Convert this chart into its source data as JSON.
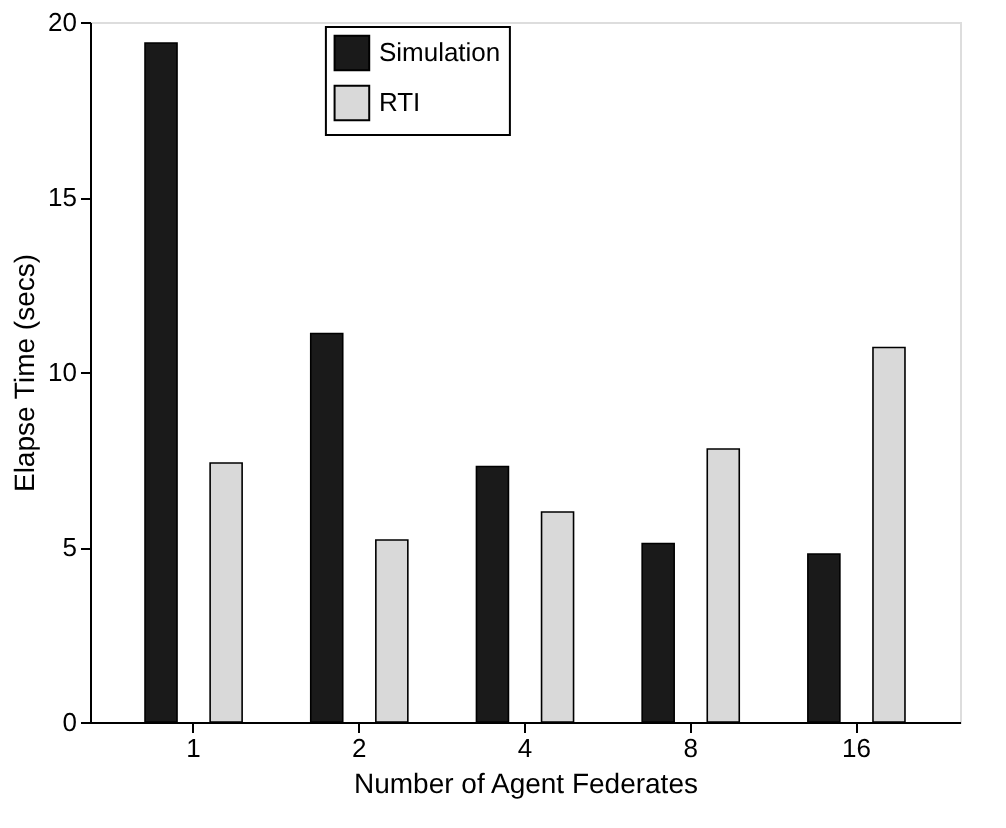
{
  "chart_data": {
    "type": "bar",
    "categories": [
      "1",
      "2",
      "4",
      "8",
      "16"
    ],
    "series": [
      {
        "name": "Simulation",
        "color": "#1a1a1a",
        "values": [
          19.4,
          11.1,
          7.3,
          5.1,
          4.8
        ]
      },
      {
        "name": "RTI",
        "color": "#d9d9d9",
        "values": [
          7.4,
          5.2,
          6.0,
          7.8,
          10.7
        ]
      }
    ],
    "xlabel": "Number of Agent Federates",
    "ylabel": "Elapse Time (secs)",
    "ylim": [
      0,
      20
    ],
    "yticks": [
      0,
      5,
      10,
      15,
      20
    ],
    "grid": false,
    "legend": "top"
  }
}
